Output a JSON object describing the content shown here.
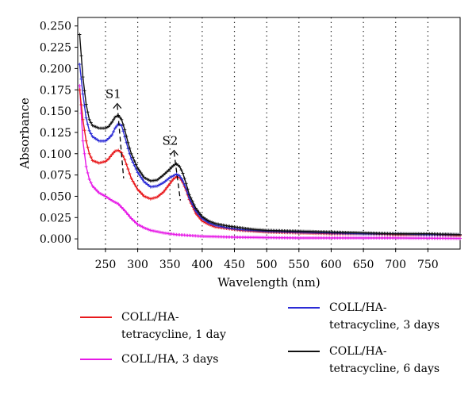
{
  "chart_data": {
    "type": "line",
    "title": "",
    "xlabel": "Wavelength (nm)",
    "ylabel": "Absorbance",
    "xlim": [
      207,
      800
    ],
    "ylim": [
      -0.012,
      0.26
    ],
    "x_ticks": [
      250,
      300,
      350,
      400,
      450,
      500,
      550,
      600,
      650,
      700,
      750
    ],
    "x_tick_labels": [
      "250",
      "300",
      "350",
      "400",
      "450",
      "500",
      "550",
      "600",
      "650",
      "700",
      "750"
    ],
    "y_ticks": [
      0.0,
      0.025,
      0.05,
      0.075,
      0.1,
      0.125,
      0.15,
      0.175,
      0.2,
      0.225,
      0.25
    ],
    "y_tick_labels": [
      "0.000",
      "0.025",
      "0.050",
      "0.075",
      "0.100",
      "0.125",
      "0.150",
      "0.175",
      "0.200",
      "0.225",
      "0.250"
    ],
    "grid": "vertical dotted",
    "legend_position": "bottom",
    "annotations": [
      {
        "text": "S1",
        "x": 272
      },
      {
        "text": "S2",
        "x": 360
      }
    ],
    "series": [
      {
        "name": "COLL/HA-\ntetracycline, 1 day",
        "color": "#e8191c",
        "x": [
          210,
          215,
          220,
          225,
          230,
          240,
          250,
          255,
          260,
          265,
          270,
          275,
          280,
          285,
          290,
          300,
          310,
          320,
          330,
          340,
          350,
          355,
          360,
          365,
          370,
          375,
          380,
          390,
          400,
          410,
          420,
          440,
          460,
          480,
          500,
          550,
          600,
          650,
          700,
          750,
          800
        ],
        "y": [
          0.175,
          0.14,
          0.115,
          0.1,
          0.092,
          0.089,
          0.091,
          0.094,
          0.099,
          0.103,
          0.104,
          0.101,
          0.093,
          0.082,
          0.071,
          0.058,
          0.05,
          0.047,
          0.049,
          0.055,
          0.065,
          0.07,
          0.073,
          0.072,
          0.066,
          0.057,
          0.046,
          0.03,
          0.021,
          0.017,
          0.014,
          0.012,
          0.01,
          0.009,
          0.008,
          0.007,
          0.006,
          0.006,
          0.005,
          0.005,
          0.004
        ]
      },
      {
        "name": "COLL/HA-\ntetracycline, 3 days",
        "color": "#2b2bd6",
        "x": [
          210,
          215,
          220,
          225,
          230,
          240,
          250,
          255,
          260,
          265,
          270,
          275,
          280,
          285,
          290,
          300,
          310,
          320,
          330,
          340,
          350,
          355,
          360,
          365,
          370,
          375,
          380,
          390,
          400,
          410,
          420,
          440,
          460,
          480,
          500,
          550,
          600,
          650,
          700,
          750,
          800
        ],
        "y": [
          0.205,
          0.17,
          0.142,
          0.127,
          0.12,
          0.115,
          0.115,
          0.118,
          0.122,
          0.13,
          0.135,
          0.133,
          0.12,
          0.106,
          0.094,
          0.078,
          0.067,
          0.061,
          0.062,
          0.066,
          0.072,
          0.074,
          0.076,
          0.074,
          0.068,
          0.059,
          0.048,
          0.033,
          0.024,
          0.019,
          0.016,
          0.013,
          0.011,
          0.01,
          0.009,
          0.008,
          0.007,
          0.006,
          0.006,
          0.005,
          0.005
        ]
      },
      {
        "name": "COLL/HA, 3 days",
        "color": "#e619e6",
        "x": [
          210,
          215,
          220,
          225,
          230,
          235,
          240,
          250,
          260,
          270,
          280,
          290,
          300,
          310,
          320,
          340,
          360,
          380,
          400,
          450,
          500,
          550,
          600,
          700,
          800
        ],
        "y": [
          0.18,
          0.115,
          0.085,
          0.07,
          0.062,
          0.058,
          0.054,
          0.05,
          0.045,
          0.041,
          0.033,
          0.024,
          0.017,
          0.013,
          0.01,
          0.007,
          0.005,
          0.004,
          0.003,
          0.002,
          0.0015,
          0.001,
          0.001,
          0.001,
          0.0005
        ]
      },
      {
        "name": "COLL/HA-\ntetracycline, 6 days",
        "color": "#111111",
        "x": [
          210,
          215,
          220,
          225,
          230,
          240,
          250,
          255,
          260,
          265,
          270,
          275,
          280,
          285,
          290,
          300,
          310,
          320,
          330,
          340,
          350,
          355,
          360,
          365,
          370,
          375,
          380,
          390,
          400,
          410,
          420,
          440,
          460,
          480,
          500,
          550,
          600,
          650,
          700,
          750,
          800
        ],
        "y": [
          0.24,
          0.19,
          0.158,
          0.14,
          0.133,
          0.13,
          0.13,
          0.132,
          0.137,
          0.143,
          0.145,
          0.14,
          0.128,
          0.113,
          0.1,
          0.083,
          0.072,
          0.068,
          0.069,
          0.075,
          0.082,
          0.086,
          0.088,
          0.085,
          0.077,
          0.065,
          0.052,
          0.036,
          0.026,
          0.021,
          0.018,
          0.015,
          0.013,
          0.011,
          0.01,
          0.009,
          0.008,
          0.007,
          0.006,
          0.006,
          0.005
        ]
      }
    ]
  },
  "legend": [
    {
      "key": "red",
      "label": "COLL/HA-\ntetracycline, 1 day",
      "color": "#e8191c"
    },
    {
      "key": "magenta",
      "label": "COLL/HA, 3 days",
      "color": "#e619e6"
    },
    {
      "key": "blue",
      "label": "COLL/HA-\ntetracycline, 3 days",
      "color": "#2b2bd6"
    },
    {
      "key": "black",
      "label": "COLL/HA-\ntetracycline, 6 days",
      "color": "#111111"
    }
  ]
}
